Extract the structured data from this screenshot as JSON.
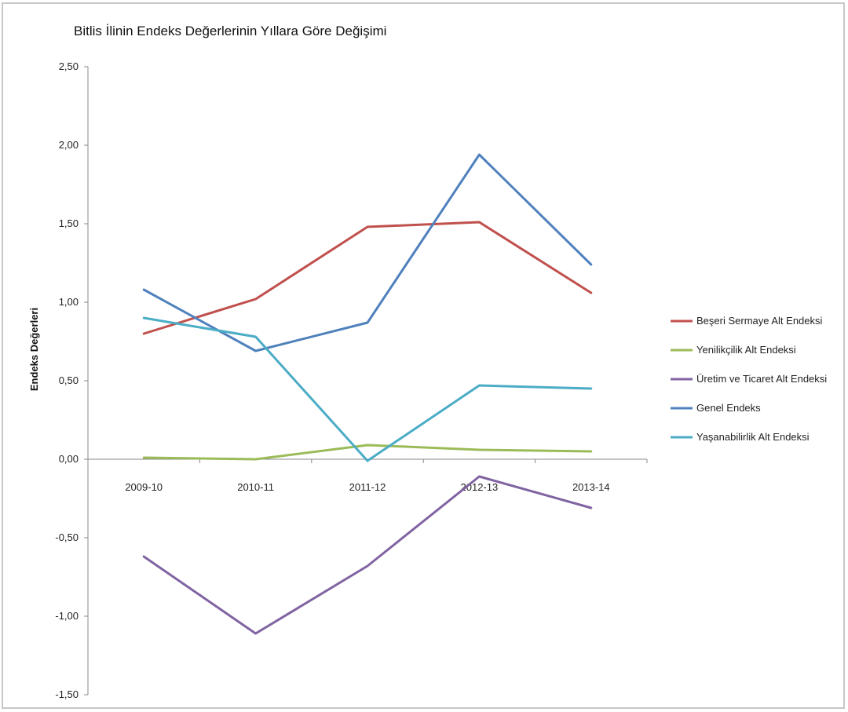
{
  "chart_data": {
    "type": "line",
    "title": "Bitlis İlinin Endeks Değerlerinin Yıllara Göre Değişimi",
    "ylabel": "Endeks Değerleri",
    "xlabel": "",
    "categories": [
      "2009-10",
      "2010-11",
      "2011-12",
      "2012-13",
      "2013-14"
    ],
    "ylim": [
      -1.5,
      2.5
    ],
    "yticks": [
      "2,50",
      "2,00",
      "1,50",
      "1,00",
      "0,50",
      "0,00",
      "-0,50",
      "-1,00",
      "-1,50"
    ],
    "ytick_values": [
      2.5,
      2.0,
      1.5,
      1.0,
      0.5,
      0.0,
      -0.5,
      -1.0,
      -1.5
    ],
    "grid": false,
    "legend_position": "right",
    "series": [
      {
        "name": "Beşeri Sermaye Alt Endeksi",
        "color": "#c0504d",
        "values": [
          0.8,
          1.02,
          1.48,
          1.51,
          1.06
        ]
      },
      {
        "name": "Yenilikçilik Alt Endeksi",
        "color": "#9bbb59",
        "values": [
          0.01,
          0.0,
          0.09,
          0.06,
          0.05
        ]
      },
      {
        "name": "Üretim ve Ticaret Alt Endeksi",
        "color": "#8064a2",
        "values": [
          -0.62,
          -1.11,
          -0.68,
          -0.11,
          -0.31
        ]
      },
      {
        "name": "Genel Endeks",
        "color": "#4f81bd",
        "values": [
          1.08,
          0.69,
          0.87,
          1.94,
          1.24
        ]
      },
      {
        "name": "Yaşanabilirlik Alt Endeksi",
        "color": "#4bacc6",
        "values": [
          0.9,
          0.78,
          -0.01,
          0.47,
          0.45
        ]
      }
    ]
  }
}
